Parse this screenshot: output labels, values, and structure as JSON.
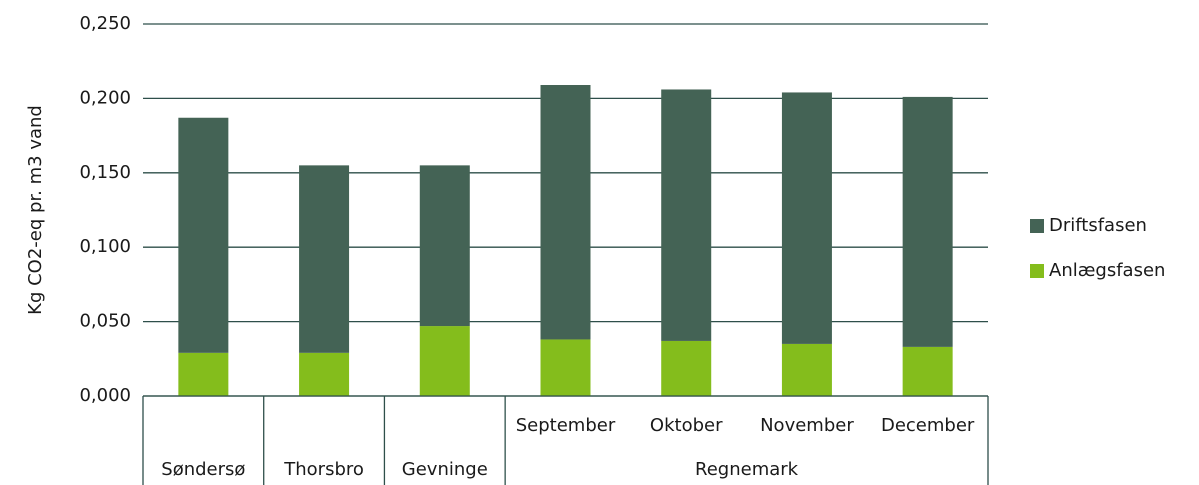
{
  "chart_data": {
    "type": "stacked_bar",
    "ylabel": "Kg CO2-eq pr. m3 vand",
    "groups": [
      {
        "name": "Søndersø",
        "categories": [
          null
        ]
      },
      {
        "name": "Thorsbro",
        "categories": [
          null
        ]
      },
      {
        "name": "Gevninge",
        "categories": [
          null
        ]
      },
      {
        "name": "Regnemark",
        "categories": [
          "September",
          "Oktober",
          "November",
          "December"
        ]
      }
    ],
    "series": [
      {
        "name": "Anlægsfasen",
        "color": "#84bd1c",
        "values": [
          0.029,
          0.029,
          0.047,
          0.038,
          0.037,
          0.035,
          0.033
        ]
      },
      {
        "name": "Driftsfasen",
        "color": "#446355",
        "values": [
          0.158,
          0.126,
          0.108,
          0.171,
          0.169,
          0.169,
          0.168
        ]
      }
    ],
    "ylim": [
      0,
      0.25
    ],
    "yticks": [
      {
        "value": 0,
        "label": "0,000"
      },
      {
        "value": 0.05,
        "label": "0,050"
      },
      {
        "value": 0.1,
        "label": "0,100"
      },
      {
        "value": 0.15,
        "label": "0,150"
      },
      {
        "value": 0.2,
        "label": "0,200"
      },
      {
        "value": 0.25,
        "label": "0,250"
      }
    ],
    "grid": true,
    "legend": "right"
  }
}
